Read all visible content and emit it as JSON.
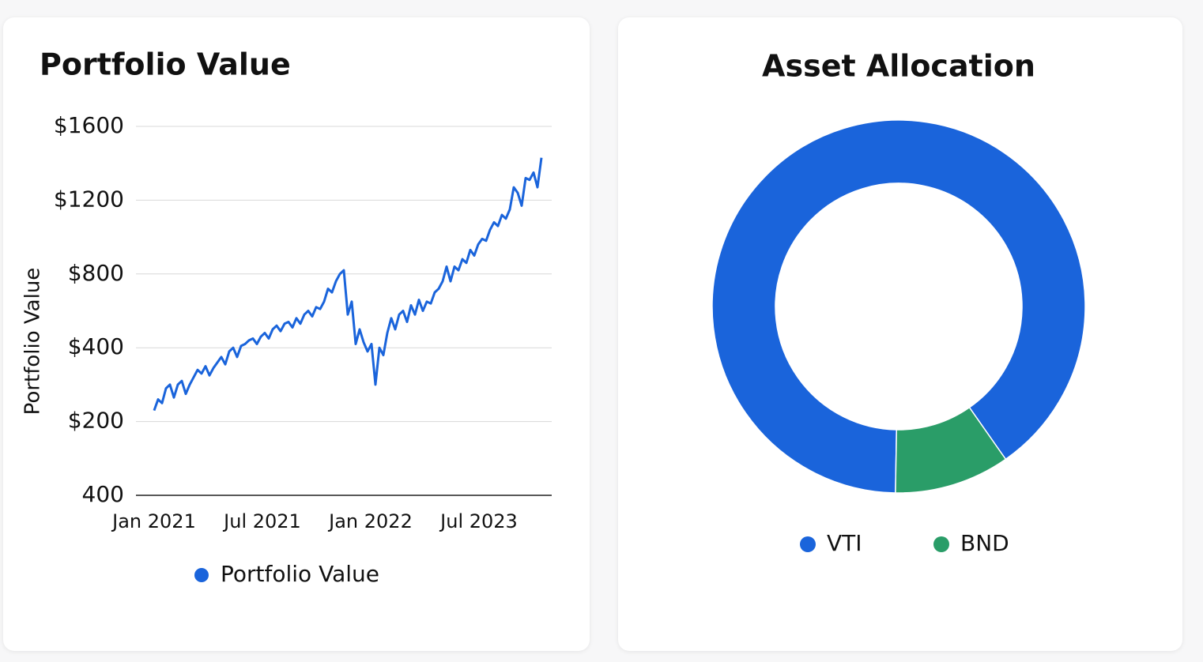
{
  "chart_data": [
    {
      "type": "line",
      "title": "Portfolio Value",
      "y_label": "Portfolio Value",
      "yticks": [
        {
          "value": 1600,
          "label": "$1600"
        },
        {
          "value": 1200,
          "label": "$1200"
        },
        {
          "value": 800,
          "label": "$800"
        },
        {
          "value": 400,
          "label": "$400"
        },
        {
          "value": 200,
          "label": "$200"
        },
        400
      ],
      "xtick_labels": [
        "Jan 2021",
        "Jul 2021",
        "Jan 2022",
        "Jul 2023"
      ],
      "grid": true,
      "series": [
        {
          "name": "Portfolio Value",
          "color": "#1a64db",
          "values": [
            230,
            260,
            250,
            290,
            300,
            265,
            300,
            310,
            275,
            300,
            320,
            340,
            330,
            350,
            325,
            345,
            360,
            375,
            355,
            390,
            400,
            375,
            410,
            420,
            440,
            450,
            420,
            460,
            480,
            450,
            500,
            520,
            490,
            530,
            540,
            510,
            560,
            530,
            580,
            600,
            570,
            620,
            610,
            650,
            720,
            700,
            760,
            800,
            820,
            580,
            650,
            420,
            500,
            430,
            390,
            420,
            300,
            400,
            380,
            480,
            560,
            500,
            580,
            600,
            540,
            630,
            580,
            660,
            600,
            650,
            640,
            700,
            720,
            760,
            840,
            760,
            840,
            820,
            880,
            860,
            930,
            900,
            960,
            990,
            980,
            1040,
            1080,
            1060,
            1120,
            1100,
            1150,
            1270,
            1240,
            1170,
            1320,
            1310,
            1350,
            1270,
            1430
          ]
        }
      ]
    },
    {
      "type": "donut",
      "title": "Asset Allocation",
      "categories": [
        "VTI",
        "BND"
      ],
      "values": [
        90,
        10
      ],
      "colors": [
        "#1a64db",
        "#2a9d68"
      ]
    }
  ]
}
